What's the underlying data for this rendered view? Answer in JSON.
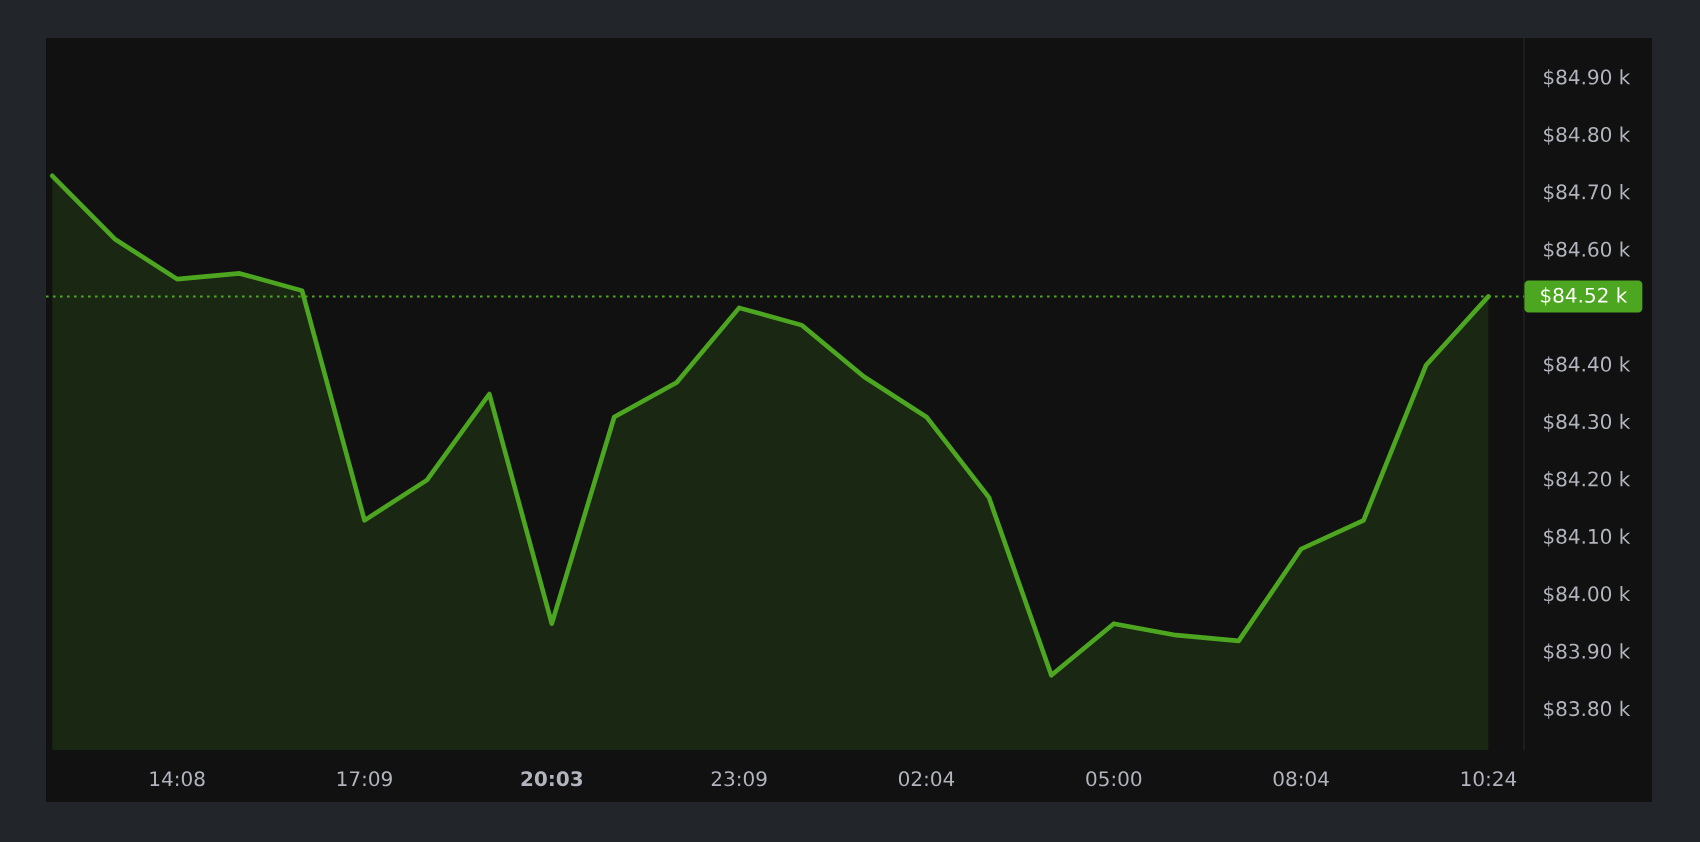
{
  "chart_data": {
    "type": "area",
    "categories": [
      null,
      null,
      "14:08",
      null,
      null,
      "17:09",
      null,
      null,
      "**20:03**",
      null,
      null,
      "23:09",
      null,
      null,
      "02:04",
      null,
      null,
      "05:00",
      null,
      null,
      "08:04",
      null,
      null,
      "10:24"
    ],
    "series": [
      {
        "color": "#4da61f",
        "values": [
          84.73,
          84.62,
          84.55,
          84.56,
          84.53,
          84.13,
          84.2,
          84.35,
          83.95,
          84.31,
          84.37,
          84.5,
          84.47,
          84.38,
          84.31,
          84.17,
          83.86,
          83.95,
          83.93,
          83.92,
          84.08,
          84.13,
          84.4,
          84.52
        ]
      }
    ],
    "ylim": [
      83.73,
      84.97
    ],
    "yticks": [
      {
        "value": 83.8,
        "label": "$83.80 k"
      },
      {
        "value": 83.9,
        "label": "$83.90 k"
      },
      {
        "value": 84.0,
        "label": "$84.00 k"
      },
      {
        "value": 84.1,
        "label": "$84.10 k"
      },
      {
        "value": 84.2,
        "label": "$84.20 k"
      },
      {
        "value": 84.3,
        "label": "$84.30 k"
      },
      {
        "value": 84.4,
        "label": "$84.40 k"
      },
      {
        "value": 84.6,
        "label": "$84.60 k"
      },
      {
        "value": 84.7,
        "label": "$84.70 k"
      },
      {
        "value": 84.8,
        "label": "$84.80 k"
      },
      {
        "value": 84.9,
        "label": "$84.90 k"
      }
    ],
    "ref_lines": [
      {
        "axis": "y",
        "value": 84.52,
        "label": "$84.52 k",
        "color": "#4da61f",
        "line_style": "dotted"
      }
    ],
    "grid": false,
    "legend": false,
    "marker": "none",
    "line_style": "solid"
  }
}
